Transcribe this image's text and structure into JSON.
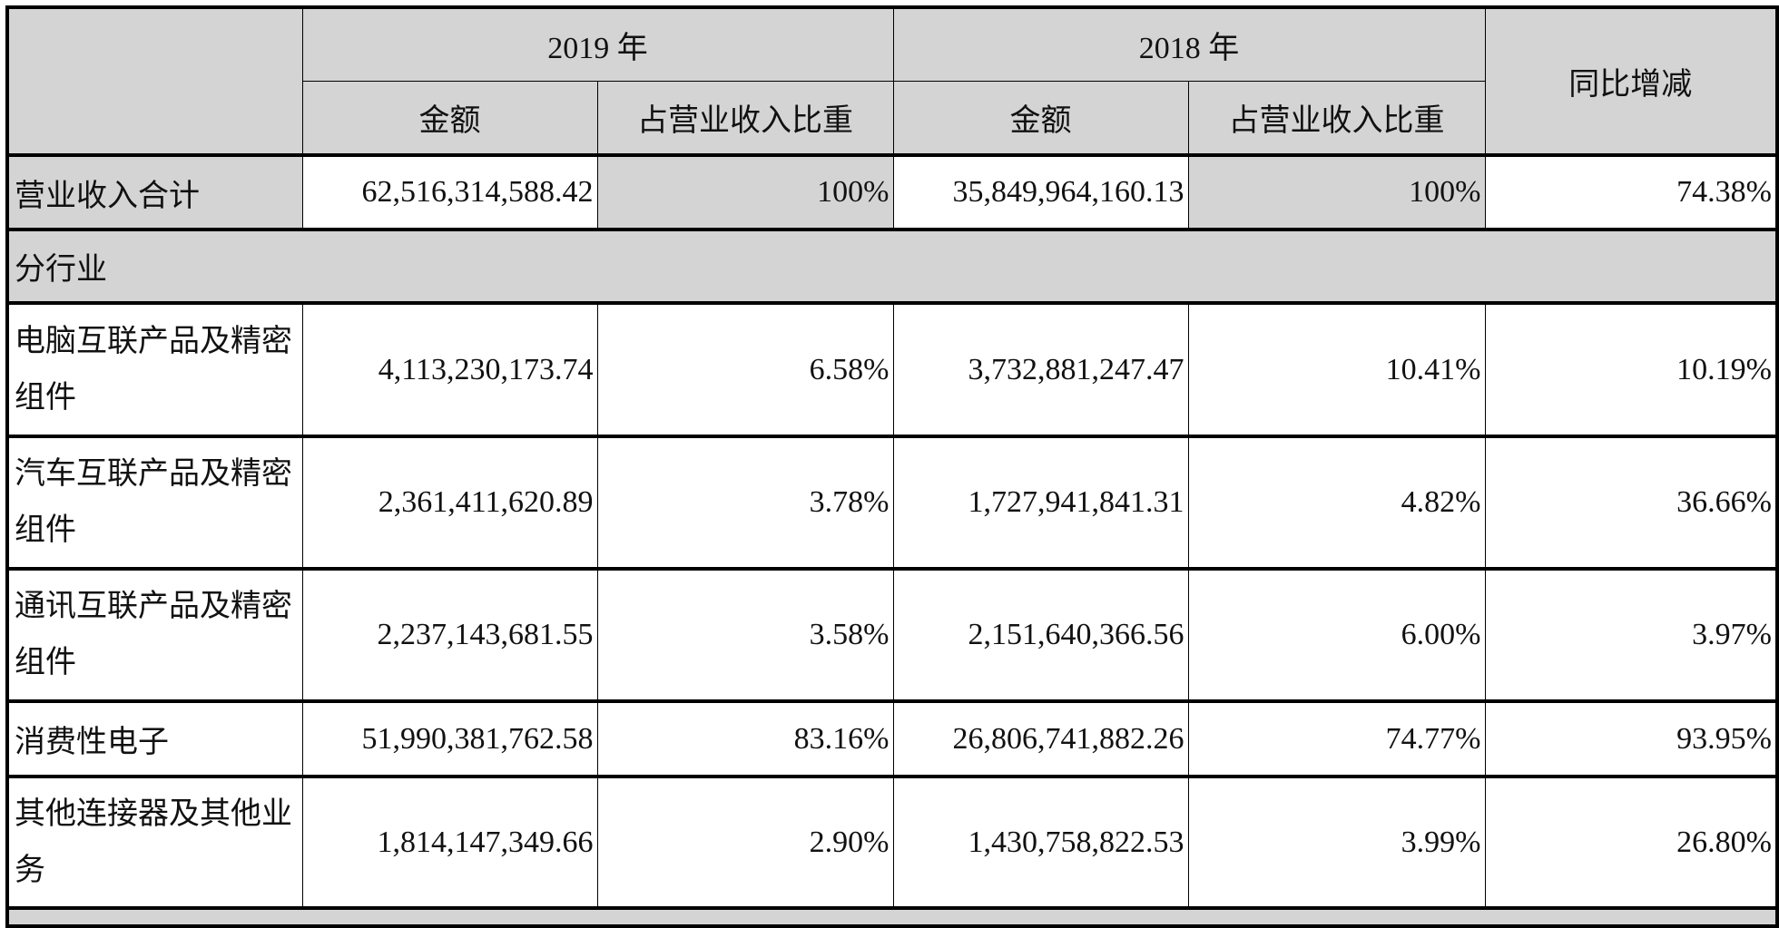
{
  "header": {
    "year1": "2019 年",
    "year2": "2018 年",
    "amount": "金额",
    "share": "占营业收入比重",
    "yoy": "同比增减"
  },
  "total": {
    "label": "营业收入合计",
    "amt2019": "62,516,314,588.42",
    "share2019": "100%",
    "amt2018": "35,849,964,160.13",
    "share2018": "100%",
    "yoy": "74.38%"
  },
  "section": "分行业",
  "rows": [
    {
      "label": "电脑互联产品及精密组件",
      "amt2019": "4,113,230,173.74",
      "share2019": "6.58%",
      "amt2018": "3,732,881,247.47",
      "share2018": "10.41%",
      "yoy": "10.19%"
    },
    {
      "label": "汽车互联产品及精密组件",
      "amt2019": "2,361,411,620.89",
      "share2019": "3.78%",
      "amt2018": "1,727,941,841.31",
      "share2018": "4.82%",
      "yoy": "36.66%"
    },
    {
      "label": "通讯互联产品及精密组件",
      "amt2019": "2,237,143,681.55",
      "share2019": "3.58%",
      "amt2018": "2,151,640,366.56",
      "share2018": "6.00%",
      "yoy": "3.97%"
    },
    {
      "label": "消费性电子",
      "amt2019": "51,990,381,762.58",
      "share2019": "83.16%",
      "amt2018": "26,806,741,882.26",
      "share2018": "74.77%",
      "yoy": "93.95%"
    },
    {
      "label": "其他连接器及其他业务",
      "amt2019": "1,814,147,349.66",
      "share2019": "2.90%",
      "amt2018": "1,430,758,822.53",
      "share2018": "3.99%",
      "yoy": "26.80%"
    }
  ]
}
